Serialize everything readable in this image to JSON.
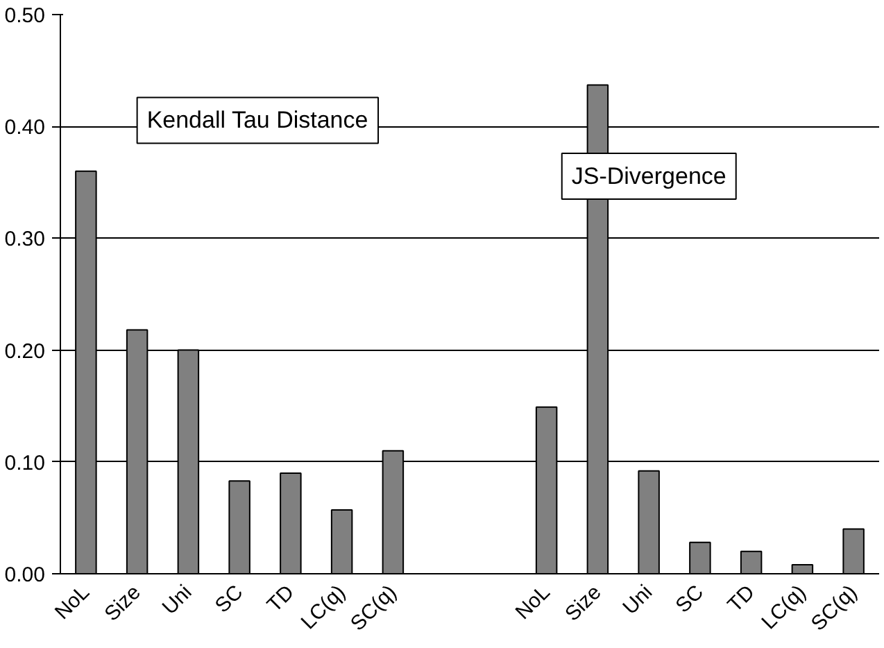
{
  "chart_data": {
    "type": "bar",
    "categories": [
      "NoL",
      "Size",
      "Uni",
      "SC",
      "TD",
      "LC(q)",
      "SC(q)",
      null,
      null,
      "NoL",
      "Size",
      "Uni",
      "SC",
      "TD",
      "LC(q)",
      "SC(q)"
    ],
    "values": [
      0.36,
      0.218,
      0.2,
      0.083,
      0.09,
      0.057,
      0.11,
      null,
      null,
      0.149,
      0.437,
      0.092,
      0.028,
      0.02,
      0.008,
      0.04
    ],
    "color": "#808080",
    "ylim": [
      0,
      0.5
    ],
    "yticks": [
      {
        "value": 0,
        "label": "0.00"
      },
      {
        "value": 0.1,
        "label": "0.10"
      },
      {
        "value": 0.2,
        "label": "0.20"
      },
      {
        "value": 0.3,
        "label": "0.30"
      },
      {
        "value": 0.4,
        "label": "0.40"
      },
      {
        "value": 0.5,
        "label": "0.50"
      }
    ],
    "grid": "y",
    "annotations": [
      "Kendall Tau Distance",
      "JS-Divergence"
    ]
  }
}
